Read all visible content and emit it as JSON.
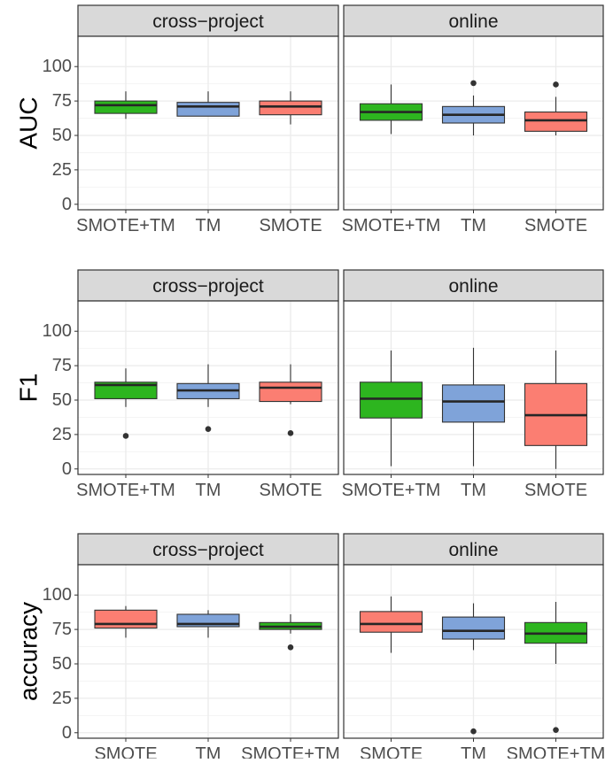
{
  "chart_data": [
    {
      "type": "boxplot",
      "ylabel": "AUC",
      "ylim": [
        -4,
        122
      ],
      "yticks": [
        0,
        25,
        50,
        75,
        100
      ],
      "ytick_labels": [
        "0",
        "25",
        "50",
        "75",
        "100"
      ],
      "grid": true,
      "panels": [
        {
          "strip_label": "cross−project",
          "categories": [
            "SMOTE+TM",
            "TM",
            "SMOTE"
          ],
          "boxes": [
            {
              "category": "SMOTE+TM",
              "fill": "#2db51f",
              "min": 62,
              "q1": 66,
              "median": 72,
              "q3": 75,
              "max": 82,
              "outliers": []
            },
            {
              "category": "TM",
              "fill": "#7fa3d9",
              "min": 64,
              "q1": 64,
              "median": 71,
              "q3": 74,
              "max": 82,
              "outliers": []
            },
            {
              "category": "SMOTE",
              "fill": "#fb7e72",
              "min": 58,
              "q1": 65,
              "median": 71,
              "q3": 75,
              "max": 82,
              "outliers": []
            }
          ]
        },
        {
          "strip_label": "online",
          "categories": [
            "SMOTE+TM",
            "TM",
            "SMOTE"
          ],
          "boxes": [
            {
              "category": "SMOTE+TM",
              "fill": "#2db51f",
              "min": 51,
              "q1": 61,
              "median": 67,
              "q3": 73,
              "max": 87,
              "outliers": []
            },
            {
              "category": "TM",
              "fill": "#7fa3d9",
              "min": 50,
              "q1": 59,
              "median": 65,
              "q3": 71,
              "max": 79,
              "outliers": [
                88
              ]
            },
            {
              "category": "SMOTE",
              "fill": "#fb7e72",
              "min": 50,
              "q1": 53,
              "median": 61,
              "q3": 67,
              "max": 78,
              "outliers": [
                87
              ]
            }
          ]
        }
      ]
    },
    {
      "type": "boxplot",
      "ylabel": "F1",
      "ylim": [
        -4,
        122
      ],
      "yticks": [
        0,
        25,
        50,
        75,
        100
      ],
      "ytick_labels": [
        "0",
        "25",
        "50",
        "75",
        "100"
      ],
      "grid": true,
      "panels": [
        {
          "strip_label": "cross−project",
          "categories": [
            "SMOTE+TM",
            "TM",
            "SMOTE"
          ],
          "boxes": [
            {
              "category": "SMOTE+TM",
              "fill": "#2db51f",
              "min": 45,
              "q1": 51,
              "median": 61,
              "q3": 63,
              "max": 73,
              "outliers": [
                24
              ]
            },
            {
              "category": "TM",
              "fill": "#7fa3d9",
              "min": 45,
              "q1": 51,
              "median": 57,
              "q3": 62,
              "max": 76,
              "outliers": [
                29
              ]
            },
            {
              "category": "SMOTE",
              "fill": "#fb7e72",
              "min": 47,
              "q1": 49,
              "median": 59,
              "q3": 63,
              "max": 76,
              "outliers": [
                26
              ]
            }
          ]
        },
        {
          "strip_label": "online",
          "categories": [
            "SMOTE+TM",
            "TM",
            "SMOTE"
          ],
          "boxes": [
            {
              "category": "SMOTE+TM",
              "fill": "#2db51f",
              "min": 2,
              "q1": 37,
              "median": 51,
              "q3": 63,
              "max": 86,
              "outliers": []
            },
            {
              "category": "TM",
              "fill": "#7fa3d9",
              "min": 2,
              "q1": 34,
              "median": 49,
              "q3": 61,
              "max": 88,
              "outliers": []
            },
            {
              "category": "SMOTE",
              "fill": "#fb7e72",
              "min": 0,
              "q1": 17,
              "median": 39,
              "q3": 62,
              "max": 86,
              "outliers": []
            }
          ]
        }
      ]
    },
    {
      "type": "boxplot",
      "ylabel": "accuracy",
      "ylim": [
        -4,
        122
      ],
      "yticks": [
        0,
        25,
        50,
        75,
        100
      ],
      "ytick_labels": [
        "0",
        "25",
        "50",
        "75",
        "100"
      ],
      "grid": true,
      "panels": [
        {
          "strip_label": "cross−project",
          "categories": [
            "SMOTE",
            "TM",
            "SMOTE+TM"
          ],
          "boxes": [
            {
              "category": "SMOTE",
              "fill": "#fb7e72",
              "min": 69,
              "q1": 76,
              "median": 79,
              "q3": 89,
              "max": 92,
              "outliers": []
            },
            {
              "category": "TM",
              "fill": "#7fa3d9",
              "min": 69,
              "q1": 77,
              "median": 79,
              "q3": 86,
              "max": 89,
              "outliers": []
            },
            {
              "category": "SMOTE+TM",
              "fill": "#2db51f",
              "min": 72,
              "q1": 75,
              "median": 77,
              "q3": 80,
              "max": 86,
              "outliers": [
                62
              ]
            }
          ]
        },
        {
          "strip_label": "online",
          "categories": [
            "SMOTE",
            "TM",
            "SMOTE+TM"
          ],
          "boxes": [
            {
              "category": "SMOTE",
              "fill": "#fb7e72",
              "min": 58,
              "q1": 73,
              "median": 79,
              "q3": 88,
              "max": 99,
              "outliers": []
            },
            {
              "category": "TM",
              "fill": "#7fa3d9",
              "min": 60,
              "q1": 68,
              "median": 74,
              "q3": 84,
              "max": 94,
              "outliers": [
                1
              ]
            },
            {
              "category": "SMOTE+TM",
              "fill": "#2db51f",
              "min": 50,
              "q1": 65,
              "median": 72,
              "q3": 80,
              "max": 95,
              "outliers": [
                2
              ]
            }
          ]
        }
      ]
    }
  ]
}
